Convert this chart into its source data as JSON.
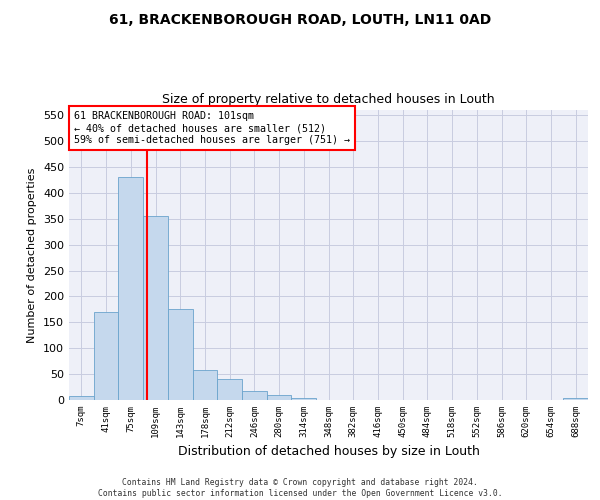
{
  "title1": "61, BRACKENBOROUGH ROAD, LOUTH, LN11 0AD",
  "title2": "Size of property relative to detached houses in Louth",
  "xlabel": "Distribution of detached houses by size in Louth",
  "ylabel": "Number of detached properties",
  "bar_labels": [
    "7sqm",
    "41sqm",
    "75sqm",
    "109sqm",
    "143sqm",
    "178sqm",
    "212sqm",
    "246sqm",
    "280sqm",
    "314sqm",
    "348sqm",
    "382sqm",
    "416sqm",
    "450sqm",
    "484sqm",
    "518sqm",
    "552sqm",
    "586sqm",
    "620sqm",
    "654sqm",
    "688sqm"
  ],
  "bar_values": [
    8,
    170,
    430,
    355,
    175,
    57,
    40,
    18,
    10,
    4,
    0,
    0,
    0,
    0,
    0,
    0,
    0,
    0,
    0,
    0,
    3
  ],
  "bar_color": "#c5d8ed",
  "bar_edge_color": "#6aa3cc",
  "vline_x": 2.67,
  "vline_color": "red",
  "ylim": [
    0,
    560
  ],
  "yticks": [
    0,
    50,
    100,
    150,
    200,
    250,
    300,
    350,
    400,
    450,
    500,
    550
  ],
  "annotation_text": "61 BRACKENBOROUGH ROAD: 101sqm\n← 40% of detached houses are smaller (512)\n59% of semi-detached houses are larger (751) →",
  "annotation_box_color": "red",
  "footer": "Contains HM Land Registry data © Crown copyright and database right 2024.\nContains public sector information licensed under the Open Government Licence v3.0.",
  "background_color": "#eef0f8",
  "grid_color": "#c8cce0"
}
